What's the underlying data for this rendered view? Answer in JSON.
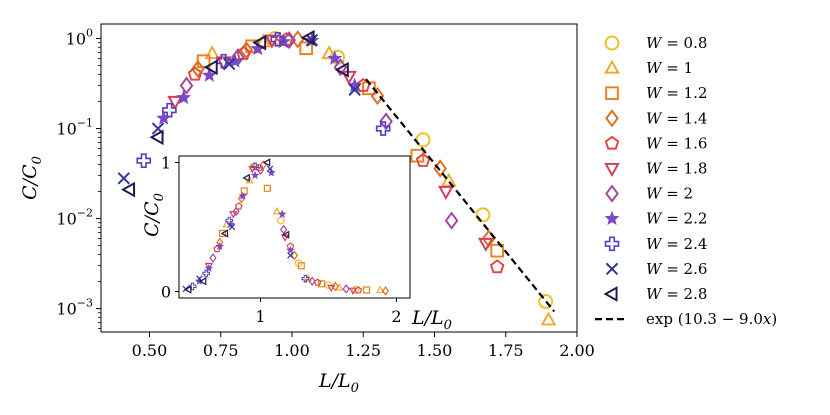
{
  "chart_data": [
    {
      "type": "scatter",
      "title": "",
      "xlabel": "L/L_0",
      "ylabel": "C/C_0",
      "xscale": "linear",
      "yscale": "log",
      "xlim": [
        0.33,
        2.0
      ],
      "ylim": [
        0.00055,
        1.45
      ],
      "xticks": [
        0.5,
        0.75,
        1.0,
        1.25,
        1.5,
        1.75,
        2.0
      ],
      "xtick_labels": [
        "0.50",
        "0.75",
        "1.00",
        "1.25",
        "1.50",
        "1.75",
        "2.00"
      ],
      "yticks": [
        1,
        0.1,
        0.01,
        0.001
      ],
      "ytick_labels": [
        "10^0",
        "10^-1",
        "10^-2",
        "10^-3"
      ],
      "legend_position": "right, outside plot",
      "series": [
        {
          "name": "W = 0.8",
          "label_main": "W = 0.8",
          "marker": "circle",
          "color": "#e6c229",
          "points": [
            [
              0.94,
              1.0
            ],
            [
              1.16,
              0.62
            ],
            [
              1.46,
              0.075
            ],
            [
              1.67,
              0.011
            ],
            [
              1.89,
              0.0012
            ]
          ]
        },
        {
          "name": "W = 1",
          "label_main": "W = 1",
          "marker": "triangle-up",
          "color": "#f0a830",
          "points": [
            [
              0.72,
              0.68
            ],
            [
              0.9,
              0.92
            ],
            [
              1.13,
              0.68
            ],
            [
              1.55,
              0.026
            ],
            [
              1.9,
              0.00075
            ]
          ]
        },
        {
          "name": "W = 1.2",
          "label_main": "W = 1.2",
          "marker": "square",
          "color": "#e8821e",
          "points": [
            [
              0.69,
              0.56
            ],
            [
              0.86,
              0.82
            ],
            [
              1.05,
              0.78
            ],
            [
              1.27,
              0.28
            ],
            [
              1.44,
              0.05
            ],
            [
              1.72,
              0.0044
            ]
          ]
        },
        {
          "name": "W = 1.4",
          "label_main": "W = 1.4",
          "marker": "diamond",
          "color": "#e46a1b",
          "points": [
            [
              0.67,
              0.46
            ],
            [
              0.84,
              0.74
            ],
            [
              1.02,
              0.98
            ],
            [
              1.3,
              0.23
            ],
            [
              1.52,
              0.036
            ],
            [
              1.69,
              0.006
            ]
          ]
        },
        {
          "name": "W = 1.6",
          "label_main": "W = 1.6",
          "marker": "pentagon",
          "color": "#e0493c",
          "points": [
            [
              0.66,
              0.4
            ],
            [
              0.83,
              0.68
            ],
            [
              0.98,
              0.97
            ],
            [
              1.25,
              0.3
            ],
            [
              1.46,
              0.044
            ],
            [
              1.72,
              0.0029
            ]
          ]
        },
        {
          "name": "W = 1.8",
          "label_main": "W = 1.8",
          "marker": "triangle-down",
          "color": "#d63c5a",
          "points": [
            [
              0.59,
              0.2
            ],
            [
              0.76,
              0.55
            ],
            [
              0.93,
              0.96
            ],
            [
              1.2,
              0.38
            ],
            [
              1.54,
              0.02
            ],
            [
              1.68,
              0.0053
            ]
          ]
        },
        {
          "name": "W = 2",
          "label_main": "W = 2",
          "marker": "diamond",
          "color": "#a1479d",
          "points": [
            [
              0.63,
              0.3
            ],
            [
              0.81,
              0.62
            ],
            [
              0.99,
              0.96
            ],
            [
              1.17,
              0.48
            ],
            [
              1.33,
              0.12
            ],
            [
              1.56,
              0.0095
            ]
          ]
        },
        {
          "name": "W = 2.2",
          "label_main": "W = 2.2",
          "marker": "star",
          "color": "#7b48c8",
          "points": [
            [
              0.55,
              0.13
            ],
            [
              0.62,
              0.22
            ],
            [
              0.71,
              0.39
            ],
            [
              0.8,
              0.56
            ],
            [
              0.88,
              0.77
            ],
            [
              0.97,
              0.92
            ],
            [
              1.07,
              0.95
            ],
            [
              1.15,
              0.6
            ],
            [
              1.22,
              0.3
            ]
          ]
        },
        {
          "name": "W = 2.4",
          "label_main": "W = 2.4",
          "marker": "plus",
          "color": "#5a3ec2",
          "points": [
            [
              0.48,
              0.044
            ],
            [
              0.57,
              0.16
            ],
            [
              0.76,
              0.56
            ],
            [
              0.95,
              0.98
            ],
            [
              1.32,
              0.1
            ]
          ]
        },
        {
          "name": "W = 2.6",
          "label_main": "W = 2.6",
          "marker": "x",
          "color": "#33339e",
          "points": [
            [
              0.41,
              0.028
            ],
            [
              0.53,
              0.1
            ],
            [
              0.78,
              0.52
            ],
            [
              1.07,
              0.96
            ],
            [
              1.22,
              0.27
            ]
          ]
        },
        {
          "name": "W = 2.8",
          "label_main": "W = 2.8",
          "marker": "triangle-left",
          "color": "#1f1a4a",
          "points": [
            [
              0.43,
              0.021
            ],
            [
              0.53,
              0.08
            ],
            [
              0.72,
              0.48
            ],
            [
              0.89,
              0.9
            ],
            [
              1.06,
              1.02
            ],
            [
              1.18,
              0.45
            ]
          ]
        }
      ],
      "fit_line": {
        "name": "exp(10.3 - 9.0x)",
        "label_main": "exp(10.3 − 9.0x)",
        "style": "dashed",
        "color": "#000000",
        "intercept": 10.3,
        "slope": -9.0,
        "x_range": [
          1.26,
          1.92
        ]
      }
    },
    {
      "type": "scatter",
      "title": "",
      "position": "inset",
      "xlabel": "L/L_0",
      "ylabel": "C/C_0",
      "xscale": "linear",
      "yscale": "linear",
      "xlim": [
        0.4,
        2.1
      ],
      "ylim": [
        -0.05,
        1.05
      ],
      "xticks": [
        1,
        2
      ],
      "xtick_labels": [
        "1",
        "2"
      ],
      "yticks": [
        0,
        1
      ],
      "ytick_labels": [
        "0",
        "1"
      ],
      "series": [
        {
          "name": "W = 0.8",
          "points": [
            [
              0.95,
              0.97
            ],
            [
              1.15,
              0.55
            ],
            [
              1.28,
              0.22
            ],
            [
              1.5,
              0.05
            ],
            [
              1.7,
              0.015
            ]
          ]
        },
        {
          "name": "W = 1",
          "points": [
            [
              0.75,
              0.52
            ],
            [
              0.92,
              0.86
            ],
            [
              1.12,
              0.62
            ],
            [
              1.35,
              0.1
            ],
            [
              1.58,
              0.03
            ],
            [
              1.88,
              0.01
            ]
          ]
        },
        {
          "name": "W = 1.2",
          "points": [
            [
              0.72,
              0.45
            ],
            [
              0.88,
              0.78
            ],
            [
              1.05,
              0.8
            ],
            [
              1.3,
              0.2
            ],
            [
              1.45,
              0.06
            ],
            [
              1.78,
              0.012
            ]
          ]
        },
        {
          "name": "W = 1.4",
          "points": [
            [
              0.7,
              0.38
            ],
            [
              0.86,
              0.72
            ],
            [
              1.02,
              0.98
            ],
            [
              1.25,
              0.28
            ],
            [
              1.55,
              0.04
            ],
            [
              1.92,
              0.005
            ]
          ]
        },
        {
          "name": "W = 1.6",
          "points": [
            [
              0.68,
              0.33
            ],
            [
              0.84,
              0.66
            ],
            [
              0.99,
              0.96
            ],
            [
              1.22,
              0.35
            ],
            [
              1.42,
              0.07
            ],
            [
              1.72,
              0.01
            ]
          ]
        },
        {
          "name": "W = 1.8",
          "points": [
            [
              0.62,
              0.2
            ],
            [
              0.8,
              0.6
            ],
            [
              0.94,
              0.95
            ],
            [
              1.18,
              0.42
            ],
            [
              1.52,
              0.03
            ],
            [
              1.68,
              0.008
            ]
          ]
        },
        {
          "name": "W = 2",
          "points": [
            [
              0.65,
              0.26
            ],
            [
              0.82,
              0.62
            ],
            [
              1.0,
              0.94
            ],
            [
              1.17,
              0.48
            ],
            [
              1.38,
              0.08
            ],
            [
              1.63,
              0.02
            ]
          ]
        },
        {
          "name": "W = 2.2",
          "points": [
            [
              0.55,
              0.08
            ],
            [
              0.62,
              0.18
            ],
            [
              0.7,
              0.35
            ],
            [
              0.78,
              0.52
            ],
            [
              0.87,
              0.74
            ],
            [
              0.96,
              0.9
            ],
            [
              1.08,
              0.92
            ],
            [
              1.16,
              0.6
            ],
            [
              1.22,
              0.32
            ]
          ]
        },
        {
          "name": "W = 2.4",
          "points": [
            [
              0.5,
              0.04
            ],
            [
              0.6,
              0.14
            ],
            [
              0.77,
              0.55
            ],
            [
              0.96,
              0.97
            ],
            [
              1.33,
              0.1
            ]
          ]
        },
        {
          "name": "W = 2.6",
          "points": [
            [
              0.45,
              0.02
            ],
            [
              0.55,
              0.1
            ],
            [
              0.79,
              0.5
            ],
            [
              1.07,
              0.95
            ],
            [
              1.22,
              0.28
            ]
          ]
        },
        {
          "name": "W = 2.8",
          "points": [
            [
              0.47,
              0.015
            ],
            [
              0.58,
              0.08
            ],
            [
              0.74,
              0.45
            ],
            [
              0.9,
              0.88
            ],
            [
              1.05,
              1.0
            ],
            [
              1.19,
              0.44
            ]
          ]
        }
      ]
    }
  ]
}
